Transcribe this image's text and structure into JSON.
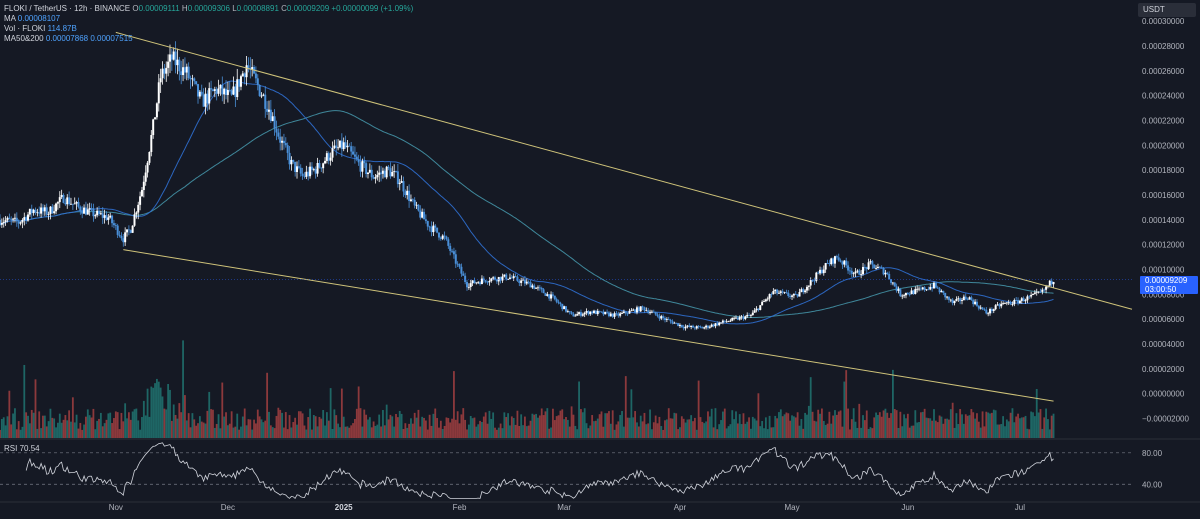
{
  "header": {
    "symbol": "FLOKI / TetherUS · 12h · BINANCE",
    "open_label": "O",
    "open_value": "0.00009111",
    "high_label": "H",
    "high_value": "0.00009306",
    "low_label": "L",
    "low_value": "0.00008891",
    "close_label": "C",
    "close_value": "0.00009209",
    "change": "+0.00000099 (+1.09%)",
    "ma_label": "MA",
    "ma_value": "0.00008107",
    "vol_label": "Vol · FLOKI",
    "vol_value": "114.87B",
    "ma50_label": "MA50&200",
    "ma50_value": "0.00007868",
    "ma200_value": "0.00007515"
  },
  "currency": "USDT",
  "last_price": {
    "value": "0.00009209",
    "countdown": "03:00:50"
  },
  "rsi": {
    "label": "RSI",
    "value": "70.54",
    "upper_label": "80.00",
    "lower_label": "40.00"
  },
  "colors": {
    "background": "#151924",
    "up": "#ffffff",
    "down": "#4a90d9",
    "ma_line": "#2f6fd0",
    "ma_long": "#4aa3b8",
    "trendline": "#cfc37a",
    "vol_up": "#26a69a",
    "vol_down": "#ef5350",
    "axis_text": "#b2b5be",
    "price_tag": "#2962ff",
    "rsi_line": "#d1d4dc"
  },
  "chart_data": {
    "type": "candlestick",
    "y_ticks": [
      "0.00030000",
      "0.00028000",
      "0.00026000",
      "0.00024000",
      "0.00022000",
      "0.00020000",
      "0.00018000",
      "0.00016000",
      "0.00014000",
      "0.00012000",
      "0.00010000",
      "0.00008000",
      "0.00006000",
      "0.00004000",
      "0.00002000",
      "0.00000000",
      "−0.00002000"
    ],
    "y_tick_values": [
      0.0003,
      0.00028,
      0.00026,
      0.00024,
      0.00022,
      0.0002,
      0.00018,
      0.00016,
      0.00014,
      0.00012,
      0.0001,
      8e-05,
      6e-05,
      4e-05,
      2e-05,
      0.0,
      -2e-05
    ],
    "x_ticks": [
      {
        "label": "Nov",
        "date": "2024-11-01"
      },
      {
        "label": "Dec",
        "date": "2024-12-01"
      },
      {
        "label": "2025",
        "date": "2025-01-01"
      },
      {
        "label": "Feb",
        "date": "2025-02-01"
      },
      {
        "label": "Mar",
        "date": "2025-03-01"
      },
      {
        "label": "Apr",
        "date": "2025-04-01"
      },
      {
        "label": "May",
        "date": "2025-05-01"
      },
      {
        "label": "Jun",
        "date": "2025-06-01"
      },
      {
        "label": "Jul",
        "date": "2025-07-01"
      }
    ],
    "price_ylim": [
      -2.2e-05,
      0.000301
    ],
    "price_keypoints": [
      [
        "2024-10-01",
        0.00014
      ],
      [
        "2024-10-06",
        0.000138
      ],
      [
        "2024-10-10",
        0.000148
      ],
      [
        "2024-10-14",
        0.000146
      ],
      [
        "2024-10-18",
        0.000158
      ],
      [
        "2024-10-22",
        0.00015
      ],
      [
        "2024-10-26",
        0.000145
      ],
      [
        "2024-10-30",
        0.000142
      ],
      [
        "2024-11-03",
        0.000125
      ],
      [
        "2024-11-05",
        0.000133
      ],
      [
        "2024-11-08",
        0.000165
      ],
      [
        "2024-11-11",
        0.000215
      ],
      [
        "2024-11-13",
        0.000255
      ],
      [
        "2024-11-16",
        0.00027
      ],
      [
        "2024-11-20",
        0.000258
      ],
      [
        "2024-11-24",
        0.000235
      ],
      [
        "2024-11-28",
        0.000245
      ],
      [
        "2024-12-02",
        0.000238
      ],
      [
        "2024-12-06",
        0.000265
      ],
      [
        "2024-12-09",
        0.000248
      ],
      [
        "2024-12-12",
        0.00023
      ],
      [
        "2024-12-15",
        0.000205
      ],
      [
        "2024-12-18",
        0.000185
      ],
      [
        "2024-12-21",
        0.000175
      ],
      [
        "2024-12-25",
        0.000182
      ],
      [
        "2024-12-29",
        0.000195
      ],
      [
        "2025-01-01",
        0.0002
      ],
      [
        "2025-01-05",
        0.000185
      ],
      [
        "2025-01-09",
        0.000175
      ],
      [
        "2025-01-13",
        0.00018
      ],
      [
        "2025-01-16",
        0.000172
      ],
      [
        "2025-01-20",
        0.00015
      ],
      [
        "2025-01-24",
        0.000135
      ],
      [
        "2025-01-28",
        0.000125
      ],
      [
        "2025-02-01",
        0.0001
      ],
      [
        "2025-02-03",
        8.8e-05
      ],
      [
        "2025-02-08",
        9.2e-05
      ],
      [
        "2025-02-14",
        9.4e-05
      ],
      [
        "2025-02-20",
        8.8e-05
      ],
      [
        "2025-02-26",
        7.7e-05
      ],
      [
        "2025-03-03",
        6.3e-05
      ],
      [
        "2025-03-08",
        6.6e-05
      ],
      [
        "2025-03-15",
        6.3e-05
      ],
      [
        "2025-03-22",
        6.9e-05
      ],
      [
        "2025-03-28",
        6e-05
      ],
      [
        "2025-04-02",
        5.4e-05
      ],
      [
        "2025-04-07",
        5.3e-05
      ],
      [
        "2025-04-13",
        5.8e-05
      ],
      [
        "2025-04-20",
        6.3e-05
      ],
      [
        "2025-04-26",
        8.2e-05
      ],
      [
        "2025-05-02",
        7.8e-05
      ],
      [
        "2025-05-06",
        9e-05
      ],
      [
        "2025-05-10",
        0.000103
      ],
      [
        "2025-05-13",
        0.00011
      ],
      [
        "2025-05-18",
        9.6e-05
      ],
      [
        "2025-05-22",
        0.000104
      ],
      [
        "2025-05-26",
        9.8e-05
      ],
      [
        "2025-05-30",
        8e-05
      ],
      [
        "2025-06-04",
        8.3e-05
      ],
      [
        "2025-06-08",
        8.7e-05
      ],
      [
        "2025-06-13",
        7.3e-05
      ],
      [
        "2025-06-17",
        7.8e-05
      ],
      [
        "2025-06-22",
        6.5e-05
      ],
      [
        "2025-06-26",
        7.2e-05
      ],
      [
        "2025-06-30",
        7.4e-05
      ],
      [
        "2025-07-04",
        7.8e-05
      ],
      [
        "2025-07-07",
        8.2e-05
      ],
      [
        "2025-07-10",
        9.2e-05
      ]
    ],
    "upper_trendline": [
      [
        "2024-11-01",
        0.000291
      ],
      [
        "2025-07-31",
        6.8e-05
      ]
    ],
    "lower_trendline": [
      [
        "2024-11-03",
        0.000116
      ],
      [
        "2025-07-10",
        -6e-06
      ]
    ],
    "rsi_range": [
      20,
      95
    ],
    "rsi_levels": [
      80,
      40
    ],
    "volume_label": "Vol · FLOKI"
  }
}
